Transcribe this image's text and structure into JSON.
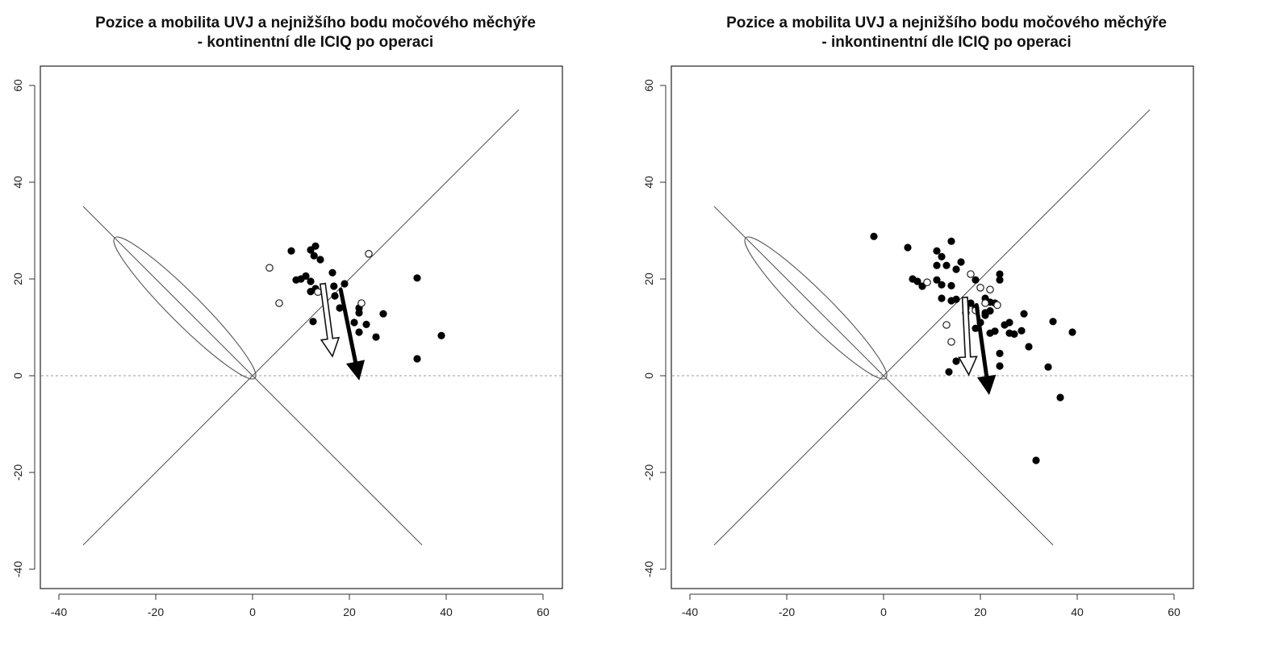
{
  "chart_data": [
    {
      "type": "scatter",
      "title_line1": "Pozice a mobilita UVJ a nejnižšího bodu močového měchýře",
      "title_line2": "- kontinentní dle ICIQ po operaci",
      "xlim": [
        -40,
        60
      ],
      "ylim": [
        -40,
        60
      ],
      "xticks": [
        "-40",
        "-20",
        "0",
        "20",
        "40",
        "60"
      ],
      "yticks": [
        "-40",
        "-20",
        "0",
        "20",
        "40",
        "60"
      ],
      "reference_line_y": 0,
      "diagonal_lines": [
        {
          "from": [
            -35,
            -35
          ],
          "to": [
            55,
            55
          ]
        },
        {
          "from": [
            -35,
            35
          ],
          "to": [
            35,
            -35
          ]
        }
      ],
      "ellipse": {
        "center": [
          -14,
          14
        ],
        "semi_major": 20.5,
        "semi_minor": 3.2,
        "angle_deg": 135
      },
      "series": [
        {
          "marker": "filled",
          "points": [
            [
              8,
              25.8
            ],
            [
              12,
              26
            ],
            [
              13,
              26.8
            ],
            [
              12.7,
              24.8
            ],
            [
              14,
              24
            ],
            [
              10,
              20
            ],
            [
              11,
              20.6
            ],
            [
              9,
              19.8
            ],
            [
              12,
              19.5
            ],
            [
              12,
              17.4
            ],
            [
              13,
              18
            ],
            [
              16.5,
              21.3
            ],
            [
              16.8,
              18.5
            ],
            [
              19,
              19
            ],
            [
              17,
              16.5
            ],
            [
              18,
              14
            ],
            [
              22,
              13
            ],
            [
              22,
              14
            ],
            [
              23.5,
              10.6
            ],
            [
              21,
              11
            ],
            [
              22,
              9
            ],
            [
              25.5,
              8
            ],
            [
              27,
              12.8
            ],
            [
              12.5,
              11.2
            ],
            [
              34,
              20.2
            ],
            [
              34,
              3.5
            ],
            [
              39,
              8.3
            ]
          ]
        },
        {
          "marker": "open",
          "points": [
            [
              3.5,
              22.3
            ],
            [
              5.5,
              15
            ],
            [
              24,
              25.2
            ],
            [
              22.5,
              15
            ],
            [
              13.5,
              17.3
            ]
          ]
        }
      ],
      "arrows": [
        {
          "style": "open",
          "from": [
            14.5,
            19
          ],
          "to": [
            16.5,
            4
          ]
        },
        {
          "style": "filled",
          "from": [
            18.2,
            17.8
          ],
          "to": [
            22,
            -0.8
          ]
        }
      ]
    },
    {
      "type": "scatter",
      "title_line1": "Pozice a mobilita UVJ a nejnižšího bodu močového měchýře",
      "title_line2": "- inkontinentní dle ICIQ po operaci",
      "xlim": [
        -40,
        60
      ],
      "ylim": [
        -40,
        60
      ],
      "xticks": [
        "-40",
        "-20",
        "0",
        "20",
        "40",
        "60"
      ],
      "yticks": [
        "-40",
        "-20",
        "0",
        "20",
        "40",
        "60"
      ],
      "reference_line_y": 0,
      "diagonal_lines": [
        {
          "from": [
            -35,
            -35
          ],
          "to": [
            55,
            55
          ]
        },
        {
          "from": [
            -35,
            35
          ],
          "to": [
            35,
            -35
          ]
        }
      ],
      "ellipse": {
        "center": [
          -14,
          14
        ],
        "semi_major": 20.5,
        "semi_minor": 3.2,
        "angle_deg": 135
      },
      "series": [
        {
          "marker": "filled",
          "points": [
            [
              -2,
              28.8
            ],
            [
              5,
              26.5
            ],
            [
              11,
              25.8
            ],
            [
              14,
              27.8
            ],
            [
              12,
              24.6
            ],
            [
              15,
              22
            ],
            [
              16,
              23.5
            ],
            [
              11,
              22.8
            ],
            [
              13,
              22.8
            ],
            [
              6,
              20
            ],
            [
              7,
              19.5
            ],
            [
              8,
              18.5
            ],
            [
              11,
              19.8
            ],
            [
              12,
              18.8
            ],
            [
              12,
              16
            ],
            [
              14,
              18.6
            ],
            [
              14,
              15.5
            ],
            [
              15,
              15.8
            ],
            [
              17,
              14
            ],
            [
              19,
              19.8
            ],
            [
              19,
              14
            ],
            [
              18,
              15
            ],
            [
              21,
              13
            ],
            [
              22,
              13.4
            ],
            [
              20,
              11
            ],
            [
              21,
              16
            ],
            [
              22,
              15.2
            ],
            [
              23,
              15
            ],
            [
              24,
              21
            ],
            [
              24,
              19.8
            ],
            [
              19,
              9.8
            ],
            [
              21,
              12.5
            ],
            [
              22,
              8.8
            ],
            [
              23,
              9.2
            ],
            [
              24,
              4.6
            ],
            [
              24,
              2
            ],
            [
              25,
              10.5
            ],
            [
              26,
              11
            ],
            [
              26,
              8.8
            ],
            [
              27,
              8.6
            ],
            [
              28.5,
              9.3
            ],
            [
              29,
              12.8
            ],
            [
              30,
              6
            ],
            [
              35,
              11.2
            ],
            [
              39,
              9
            ],
            [
              34,
              1.8
            ],
            [
              36.5,
              -4.5
            ],
            [
              31.5,
              -17.5
            ],
            [
              13.5,
              0.8
            ],
            [
              15,
              3
            ]
          ],
          "note": ""
        },
        {
          "marker": "open",
          "points": [
            [
              9,
              19.3
            ],
            [
              18,
              21
            ],
            [
              20,
              18.2
            ],
            [
              22,
              17.8
            ],
            [
              23.5,
              14.6
            ],
            [
              13,
              10.5
            ],
            [
              14,
              7
            ],
            [
              19,
              13.5
            ],
            [
              21,
              15
            ],
            [
              17,
              13
            ]
          ]
        }
      ],
      "arrows": [
        {
          "style": "open",
          "from": [
            16.8,
            16.2
          ],
          "to": [
            17.6,
            0.2
          ]
        },
        {
          "style": "filled",
          "from": [
            19.2,
            14.6
          ],
          "to": [
            21.8,
            -3.8
          ]
        }
      ]
    }
  ]
}
